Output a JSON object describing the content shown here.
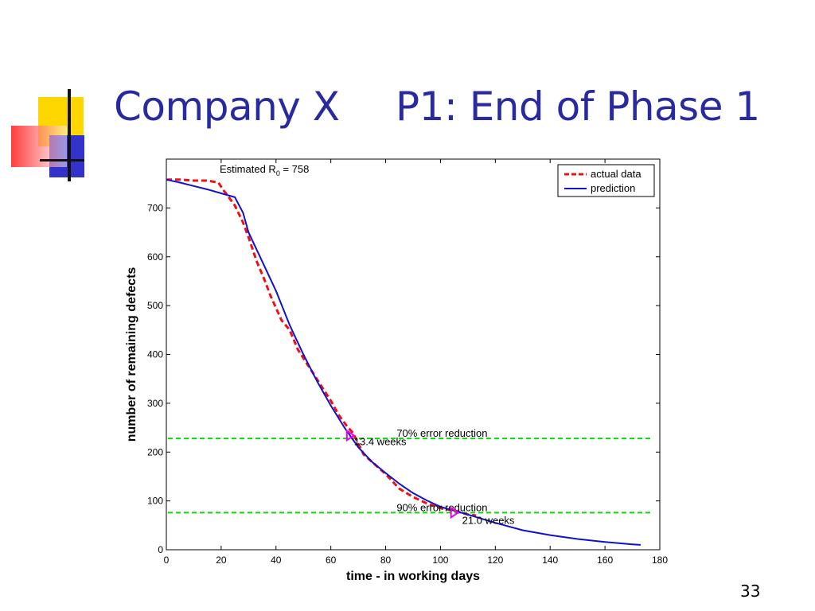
{
  "slide": {
    "title_left": "Company X",
    "title_right": "P1: End of Phase 1",
    "page_number": "33",
    "decor_colors": {
      "yellow": "#ffd700",
      "red": "#ff3333",
      "blue": "#3333cc",
      "black": "#111111"
    }
  },
  "chart_data": {
    "type": "line",
    "title": "",
    "xlabel": "time - in working days",
    "ylabel": "number of remaining defects",
    "xlim": [
      0,
      180
    ],
    "ylim": [
      0,
      800
    ],
    "x_ticks": [
      0,
      20,
      40,
      60,
      80,
      100,
      120,
      140,
      160,
      180
    ],
    "y_ticks": [
      0,
      100,
      200,
      300,
      400,
      500,
      600,
      700
    ],
    "grid": false,
    "legend_position": "top-right",
    "series": [
      {
        "name": "actual data",
        "color": "#ee1111",
        "style": "dashed",
        "x": [
          0,
          5,
          10,
          15,
          19,
          21,
          22,
          25,
          28,
          30,
          33,
          36,
          38,
          42,
          45,
          48,
          52,
          56,
          60,
          63,
          66,
          68,
          72,
          75,
          80,
          85,
          90,
          95,
          100,
          105,
          110,
          113
        ],
        "y": [
          758,
          758,
          756,
          756,
          752,
          735,
          728,
          705,
          670,
          640,
          590,
          550,
          520,
          470,
          450,
          410,
          375,
          340,
          305,
          275,
          252,
          240,
          195,
          180,
          155,
          125,
          108,
          95,
          85,
          80,
          72,
          70
        ]
      },
      {
        "name": "prediction",
        "color": "#1111cc",
        "style": "solid",
        "x": [
          0,
          5,
          10,
          15,
          20,
          25,
          28,
          30,
          35,
          40,
          45,
          50,
          55,
          60,
          65,
          70,
          75,
          80,
          85,
          90,
          95,
          100,
          105,
          110,
          120,
          130,
          140,
          150,
          160,
          170,
          173
        ],
        "y": [
          758,
          752,
          745,
          738,
          730,
          722,
          690,
          650,
          590,
          530,
          460,
          400,
          345,
          295,
          250,
          210,
          180,
          157,
          135,
          116,
          101,
          88,
          80,
          72,
          55,
          40,
          30,
          22,
          16,
          11,
          10
        ]
      }
    ],
    "reference_lines": [
      {
        "label": "70% error reduction",
        "y": 228,
        "color": "#00dd00",
        "style": "dashed"
      },
      {
        "label": "90% error reduction",
        "y": 76,
        "color": "#00dd00",
        "style": "dashed"
      }
    ],
    "annotations": {
      "estimated_prefix": "Estimated R",
      "estimated_subscript": "0",
      "estimated_suffix": " = 758",
      "markers": [
        {
          "x": 67,
          "y": 234,
          "color": "#ee00ee",
          "label": "13.4 weeks"
        },
        {
          "x": 105,
          "y": 76,
          "color": "#ee00ee",
          "label": "21.0 weeks"
        }
      ]
    }
  }
}
